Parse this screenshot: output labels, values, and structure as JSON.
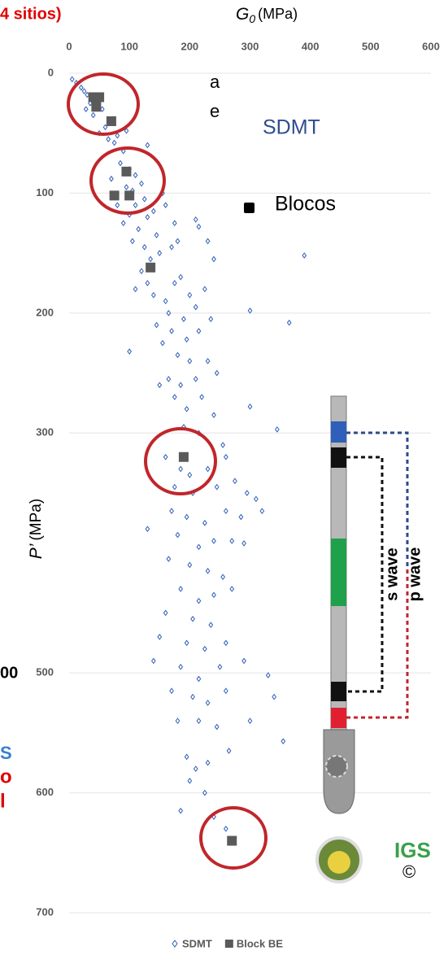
{
  "chart_data": {
    "type": "scatter",
    "title_fragment": "4 sitios)",
    "xlabel": "G",
    "xlabel_sub": "0",
    "xlabel_unit": "(MPa)",
    "ylabel": "P’",
    "ylabel_unit": "(MPa)",
    "xlim": [
      0,
      600
    ],
    "xticks": [
      0,
      100,
      200,
      300,
      400,
      500,
      600
    ],
    "ylim": [
      0,
      700
    ],
    "yticks": [
      0,
      100,
      200,
      300,
      500,
      600,
      700
    ],
    "y_inverted": true,
    "x_axis_top": true,
    "grid": true,
    "legend": "bottom",
    "annotations": [
      "SDMT",
      "Blocos"
    ],
    "diagram_labels": [
      "s wave",
      "p wave",
      "IGS",
      "©"
    ],
    "side_fragments": [
      "a",
      "e",
      "00",
      "S",
      "o",
      "l"
    ],
    "series": [
      {
        "name": "SDMT",
        "color": "#2f5fb8",
        "marker": "diamond",
        "x": [
          5,
          12,
          20,
          25,
          30,
          35,
          28,
          40,
          55,
          60,
          50,
          65,
          75,
          80,
          95,
          130,
          90,
          85,
          100,
          110,
          70,
          95,
          105,
          120,
          80,
          110,
          100,
          125,
          90,
          115,
          130,
          140,
          155,
          160,
          105,
          125,
          145,
          170,
          175,
          210,
          215,
          135,
          120,
          150,
          180,
          230,
          240,
          390,
          110,
          130,
          140,
          160,
          175,
          185,
          200,
          165,
          190,
          210,
          225,
          145,
          170,
          195,
          215,
          235,
          300,
          365,
          155,
          180,
          200,
          230,
          100,
          165,
          185,
          210,
          245,
          175,
          195,
          220,
          240,
          150,
          190,
          215,
          255,
          300,
          345,
          160,
          185,
          200,
          230,
          260,
          175,
          205,
          245,
          275,
          295,
          310,
          170,
          195,
          225,
          260,
          285,
          320,
          130,
          180,
          215,
          240,
          270,
          290,
          165,
          200,
          230,
          255,
          185,
          215,
          240,
          270,
          160,
          205,
          235,
          150,
          195,
          225,
          260,
          140,
          185,
          215,
          250,
          290,
          170,
          205,
          230,
          260,
          330,
          340,
          180,
          215,
          245,
          300,
          355,
          195,
          230,
          265,
          200,
          210,
          225,
          185,
          240,
          260
        ],
        "values": [
          5,
          8,
          12,
          15,
          18,
          25,
          30,
          35,
          30,
          45,
          50,
          55,
          58,
          52,
          48,
          60,
          65,
          75,
          80,
          85,
          88,
          95,
          98,
          92,
          110,
          110,
          118,
          105,
          125,
          130,
          120,
          115,
          100,
          110,
          140,
          145,
          135,
          145,
          125,
          122,
          128,
          155,
          165,
          150,
          140,
          140,
          155,
          152,
          180,
          175,
          185,
          190,
          175,
          170,
          185,
          200,
          205,
          195,
          180,
          210,
          215,
          222,
          215,
          205,
          198,
          208,
          225,
          235,
          240,
          240,
          232,
          255,
          260,
          255,
          250,
          270,
          280,
          270,
          285,
          260,
          295,
          300,
          310,
          278,
          297,
          320,
          330,
          335,
          330,
          320,
          345,
          350,
          345,
          340,
          350,
          355,
          365,
          370,
          375,
          365,
          370,
          365,
          380,
          385,
          395,
          390,
          390,
          392,
          405,
          410,
          415,
          420,
          430,
          440,
          435,
          430,
          450,
          455,
          460,
          470,
          475,
          480,
          475,
          490,
          495,
          505,
          495,
          490,
          515,
          520,
          525,
          515,
          502,
          520,
          540,
          540,
          545,
          540,
          557,
          570,
          575,
          565,
          590,
          580,
          600,
          615,
          620,
          630
        ]
      },
      {
        "name": "Block BE",
        "color": "#5a5a5a",
        "marker": "square",
        "x": [
          40,
          50,
          45,
          70,
          95,
          75,
          100,
          135,
          190,
          270
        ],
        "values": [
          20,
          20,
          28,
          40,
          82,
          102,
          102,
          162,
          320,
          640
        ]
      }
    ]
  }
}
